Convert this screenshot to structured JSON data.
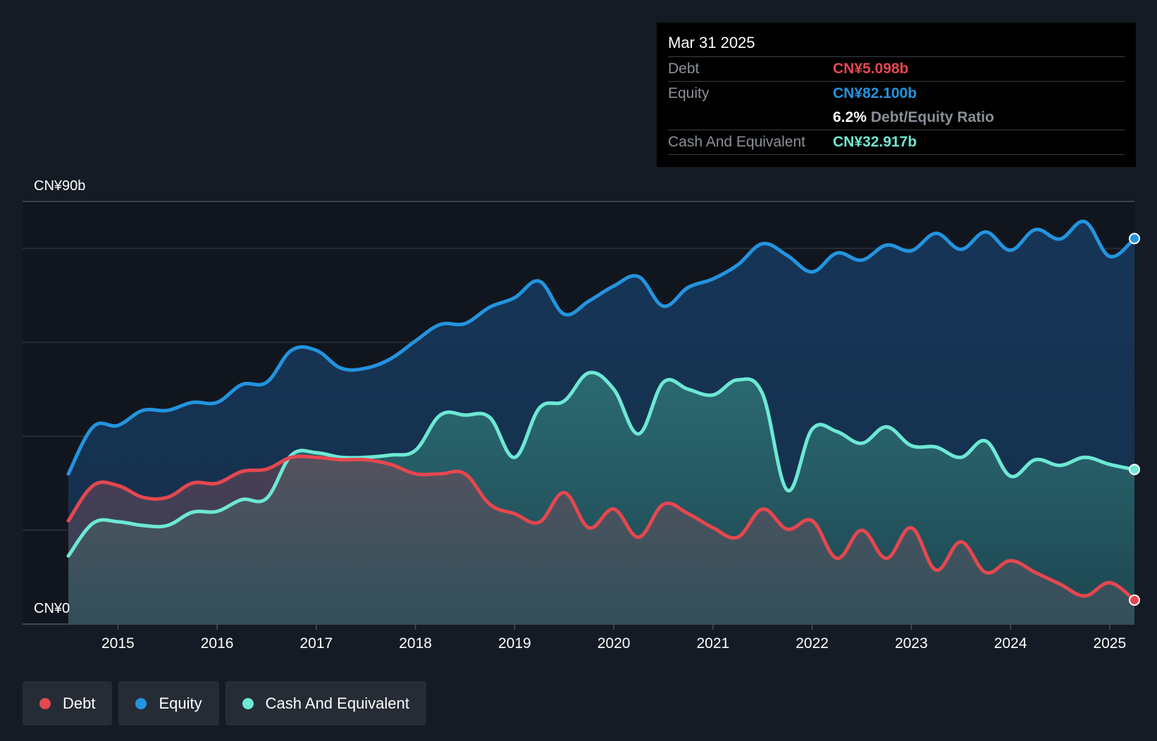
{
  "tooltip": {
    "date": "Mar 31 2025",
    "debt_label": "Debt",
    "debt_value": "CN¥5.098b",
    "equity_label": "Equity",
    "equity_value": "CN¥82.100b",
    "ratio_value": "6.2%",
    "ratio_label": "Debt/Equity Ratio",
    "cash_label": "Cash And Equivalent",
    "cash_value": "CN¥32.917b"
  },
  "legend": [
    {
      "label": "Debt",
      "color": "#e5474f"
    },
    {
      "label": "Equity",
      "color": "#2394df"
    },
    {
      "label": "Cash And Equivalent",
      "color": "#6de8d4"
    }
  ],
  "chart_data": {
    "type": "area",
    "y_top_label": "CN¥90b",
    "y_bottom_label": "CN¥0",
    "ylim": [
      0,
      90
    ],
    "xlim": [
      2014.5,
      2025.25
    ],
    "grid": true,
    "legend_position": "bottom-left",
    "x_ticks": [
      2015,
      2016,
      2017,
      2018,
      2019,
      2020,
      2021,
      2022,
      2023,
      2024,
      2025
    ],
    "x_tick_labels": [
      "2015",
      "2016",
      "2017",
      "2018",
      "2019",
      "2020",
      "2021",
      "2022",
      "2023",
      "2024",
      "2025"
    ],
    "series": [
      {
        "name": "Equity",
        "color": "#2394df",
        "x": [
          2014.5,
          2014.75,
          2015.0,
          2015.25,
          2015.5,
          2015.75,
          2016.0,
          2016.25,
          2016.5,
          2016.75,
          2017.0,
          2017.25,
          2017.5,
          2017.75,
          2018.0,
          2018.25,
          2018.5,
          2018.75,
          2019.0,
          2019.25,
          2019.5,
          2019.75,
          2020.0,
          2020.25,
          2020.5,
          2020.75,
          2021.0,
          2021.25,
          2021.5,
          2021.75,
          2022.0,
          2022.25,
          2022.5,
          2022.75,
          2023.0,
          2023.25,
          2023.5,
          2023.75,
          2024.0,
          2024.25,
          2024.5,
          2024.75,
          2025.0,
          2025.25
        ],
        "values": [
          32.0,
          42.0,
          42.3,
          45.5,
          45.5,
          47.2,
          47.2,
          51.0,
          51.5,
          58.3,
          58.3,
          54.5,
          54.5,
          56.5,
          60.3,
          63.8,
          64.0,
          67.5,
          69.5,
          73.0,
          66.0,
          68.8,
          72.0,
          74.0,
          67.7,
          71.7,
          73.5,
          76.5,
          81.0,
          78.5,
          75.0,
          79.0,
          77.5,
          80.7,
          79.5,
          83.2,
          79.8,
          83.5,
          79.6,
          84.0,
          82.0,
          85.7,
          78.3,
          82.1
        ]
      },
      {
        "name": "Cash And Equivalent",
        "color": "#6de8d4",
        "x": [
          2014.5,
          2014.75,
          2015.0,
          2015.25,
          2015.5,
          2015.75,
          2016.0,
          2016.25,
          2016.5,
          2016.75,
          2017.0,
          2017.25,
          2017.5,
          2017.75,
          2018.0,
          2018.25,
          2018.5,
          2018.75,
          2019.0,
          2019.25,
          2019.5,
          2019.75,
          2020.0,
          2020.25,
          2020.5,
          2020.75,
          2021.0,
          2021.25,
          2021.5,
          2021.75,
          2022.0,
          2022.25,
          2022.5,
          2022.75,
          2023.0,
          2023.25,
          2023.5,
          2023.75,
          2024.0,
          2024.25,
          2024.5,
          2024.75,
          2025.0,
          2025.25
        ],
        "values": [
          14.5,
          21.5,
          21.8,
          21.0,
          21.0,
          23.8,
          24.0,
          26.5,
          26.8,
          36.0,
          36.5,
          35.5,
          35.5,
          36.0,
          37.0,
          44.5,
          44.5,
          44.0,
          35.5,
          46.0,
          47.5,
          53.5,
          50.0,
          40.5,
          51.5,
          50.0,
          48.8,
          52.0,
          49.0,
          28.5,
          41.5,
          41.0,
          38.5,
          42.0,
          38.0,
          37.7,
          35.5,
          39.0,
          31.5,
          35.0,
          33.8,
          35.5,
          34.0,
          32.917
        ]
      },
      {
        "name": "Debt",
        "color": "#e5474f",
        "x": [
          2014.5,
          2014.75,
          2015.0,
          2015.25,
          2015.5,
          2015.75,
          2016.0,
          2016.25,
          2016.5,
          2016.75,
          2017.0,
          2017.25,
          2017.5,
          2017.75,
          2018.0,
          2018.25,
          2018.5,
          2018.75,
          2019.0,
          2019.25,
          2019.5,
          2019.75,
          2020.0,
          2020.25,
          2020.5,
          2020.75,
          2021.0,
          2021.25,
          2021.5,
          2021.75,
          2022.0,
          2022.25,
          2022.5,
          2022.75,
          2023.0,
          2023.25,
          2023.5,
          2023.75,
          2024.0,
          2024.25,
          2024.5,
          2024.75,
          2025.0,
          2025.25
        ],
        "values": [
          22.0,
          29.5,
          29.5,
          27.0,
          27.0,
          30.0,
          30.0,
          32.5,
          33.0,
          35.5,
          35.5,
          35.0,
          35.0,
          34.0,
          32.0,
          32.0,
          32.0,
          25.5,
          23.5,
          21.7,
          28.0,
          20.5,
          24.5,
          18.5,
          25.5,
          23.5,
          20.5,
          18.5,
          24.5,
          20.2,
          22.0,
          14.0,
          20.0,
          14.0,
          20.5,
          11.5,
          17.5,
          11.0,
          13.5,
          11.0,
          8.5,
          6.0,
          8.8,
          5.098
        ]
      }
    ]
  }
}
